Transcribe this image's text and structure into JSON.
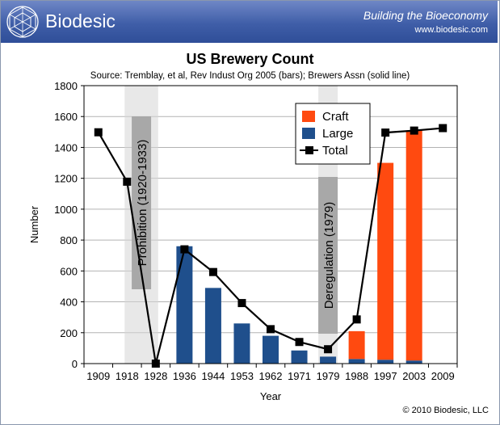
{
  "header": {
    "brand": "Biodesic",
    "tagline": "Building the Bioeconomy",
    "website": "www.biodesic.com"
  },
  "footer": {
    "copyright": "© 2010 Biodesic, LLC"
  },
  "colors": {
    "banner": "#3f5ea8",
    "craft": "#ff4a10",
    "large": "#1f4f8c",
    "total": "#000000",
    "band": "#d6d6d6"
  },
  "chart_data": {
    "type": "bar",
    "title": "US Brewery Count",
    "subtitle": "Source: Tremblay, et al, Rev Indust Org 2005 (bars); Brewers Assn (solid line)",
    "xlabel": "Year",
    "ylabel": "Number",
    "ylim": [
      0,
      1800
    ],
    "yticks": [
      0,
      200,
      400,
      600,
      800,
      1000,
      1200,
      1400,
      1600,
      1800
    ],
    "grid": true,
    "legend_position": "top-right",
    "categories": [
      "1909",
      "1918",
      "1928",
      "1936",
      "1944",
      "1953",
      "1962",
      "1971",
      "1979",
      "1988",
      "1997",
      "2003",
      "2009"
    ],
    "series": [
      {
        "name": "Large",
        "kind": "bar",
        "color": "#1f4f8c",
        "values": [
          null,
          null,
          null,
          760,
          490,
          260,
          180,
          85,
          45,
          30,
          25,
          20,
          null
        ]
      },
      {
        "name": "Craft",
        "kind": "bar",
        "color": "#ff4a10",
        "values": [
          null,
          null,
          null,
          0,
          0,
          0,
          0,
          0,
          0,
          180,
          1275,
          1490,
          null
        ]
      },
      {
        "name": "Total",
        "kind": "line",
        "color": "#000000",
        "values": [
          1498,
          1178,
          0,
          740,
          593,
          392,
          223,
          140,
          93,
          286,
          1496,
          1509,
          1525
        ]
      }
    ],
    "annotations": [
      {
        "label": "Prohibition (1920-1933)",
        "from": "1918",
        "to": "1928"
      },
      {
        "label": "Deregulation (1979)",
        "at": "1979"
      }
    ]
  }
}
